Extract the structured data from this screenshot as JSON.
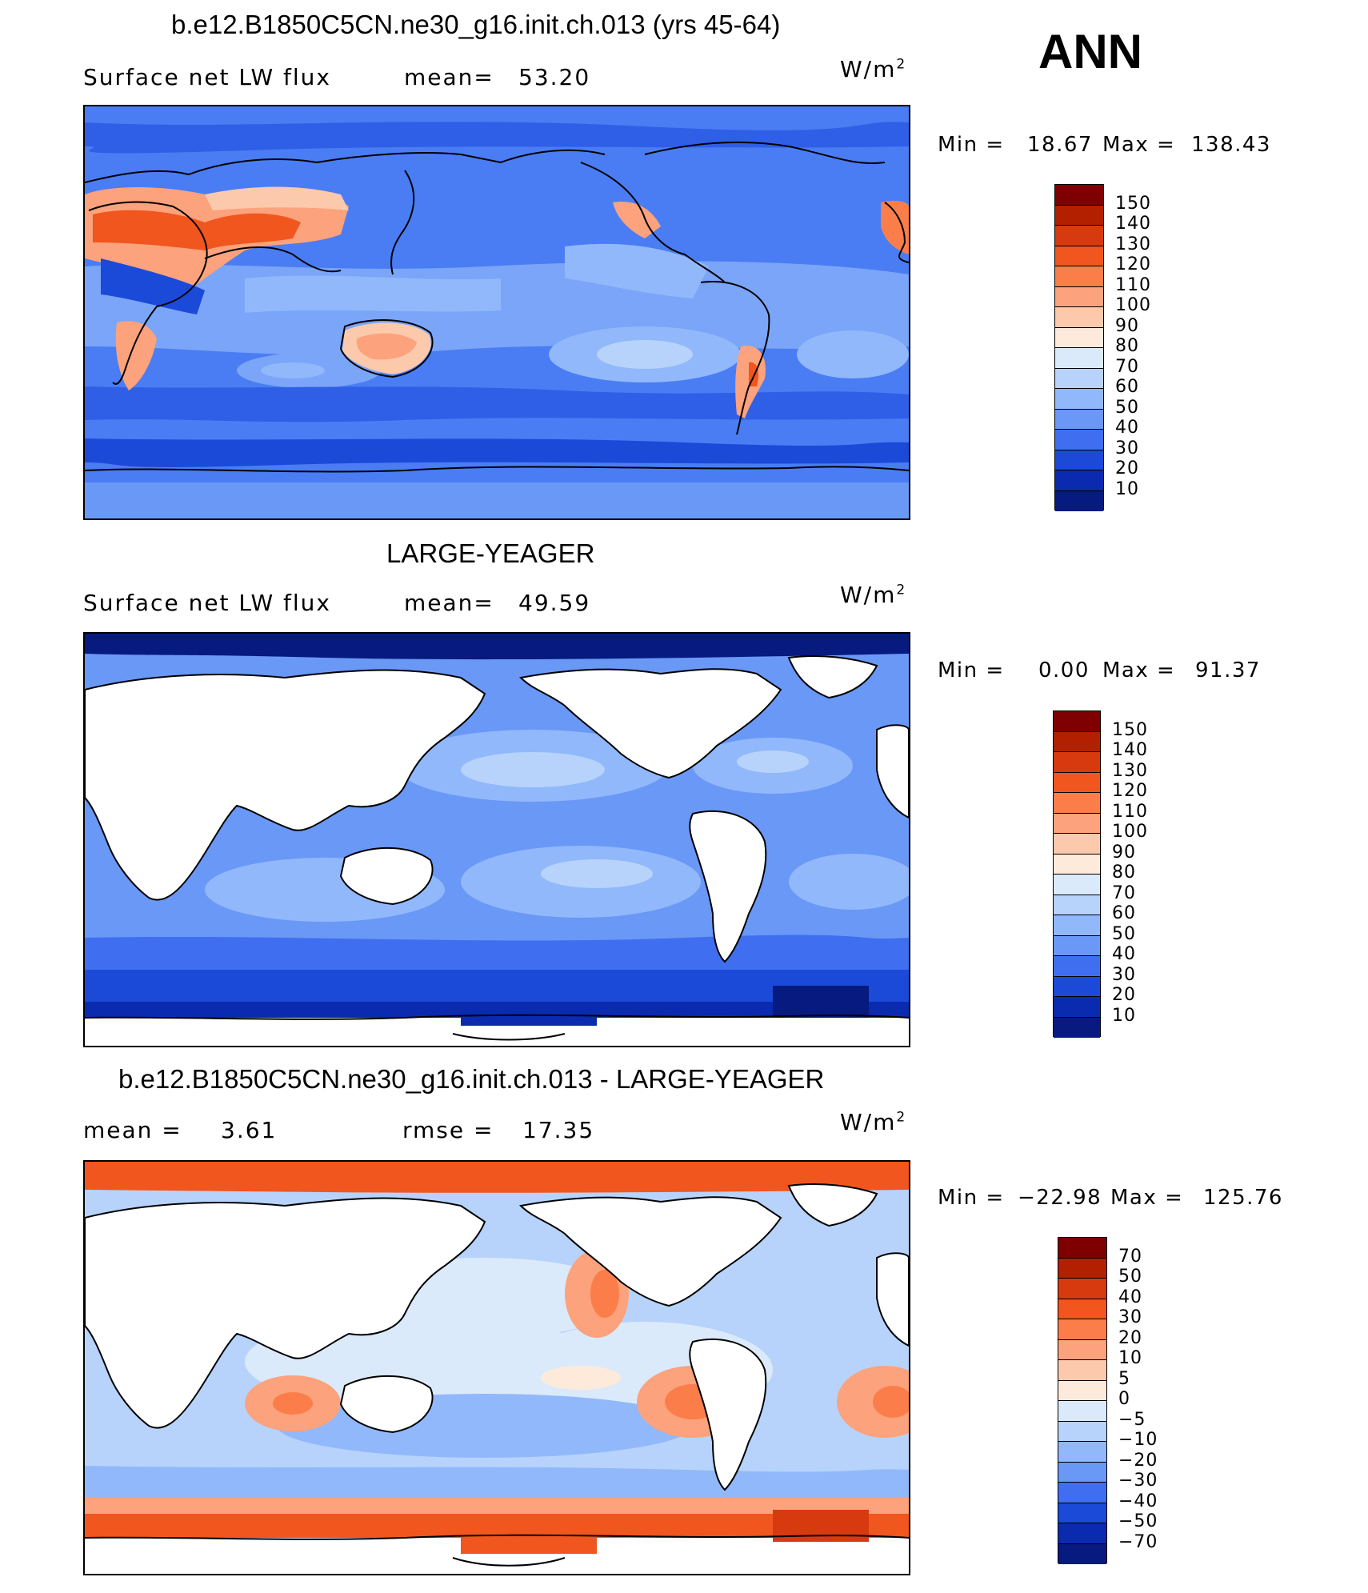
{
  "season": "ANN",
  "panels": [
    {
      "title": "b.e12.B1850C5CN.ne30_g16.init.ch.013 (yrs 45-64)",
      "left_text": "Surface net LW flux",
      "mid_label": "mean=",
      "mid_value": "53.20",
      "units": "W/m",
      "units_sup": "2",
      "min_label": "Min  =",
      "min_value": "18.67",
      "max_label": "Max  =",
      "max_value": "138.43",
      "colorbar": [
        "150",
        "140",
        "130",
        "120",
        "110",
        "100",
        "90",
        "80",
        "70",
        "60",
        "50",
        "40",
        "30",
        "20",
        "10"
      ],
      "colors": [
        "#7f0000",
        "#b22000",
        "#d83a10",
        "#f0561e",
        "#fb7e4a",
        "#fca27c",
        "#fdc9ac",
        "#fdeadb",
        "#dbeafb",
        "#b7d3fb",
        "#91b8fa",
        "#6a98f6",
        "#3f6ff0",
        "#1b4ad9",
        "#0a2bb0",
        "#061a7f"
      ]
    },
    {
      "title": "LARGE-YEAGER",
      "left_text": "Surface net LW flux",
      "mid_label": "mean=",
      "mid_value": "49.59",
      "units": "W/m",
      "units_sup": "2",
      "min_label": "Min  =",
      "min_value": "0.00",
      "max_label": "Max  =",
      "max_value": "91.37",
      "colorbar": [
        "150",
        "140",
        "130",
        "120",
        "110",
        "100",
        "90",
        "80",
        "70",
        "60",
        "50",
        "40",
        "30",
        "20",
        "10"
      ],
      "colors": [
        "#7f0000",
        "#b22000",
        "#d83a10",
        "#f0561e",
        "#fb7e4a",
        "#fca27c",
        "#fdc9ac",
        "#fdeadb",
        "#dbeafb",
        "#b7d3fb",
        "#91b8fa",
        "#6a98f6",
        "#3f6ff0",
        "#1b4ad9",
        "#0a2bb0",
        "#061a7f"
      ]
    },
    {
      "title": "b.e12.B1850C5CN.ne30_g16.init.ch.013 - LARGE-YEAGER",
      "left_label": "mean =",
      "left_value": "3.61",
      "mid_label": "rmse =",
      "mid_value": "17.35",
      "units": "W/m",
      "units_sup": "2",
      "min_label": "Min  =",
      "min_value": "−22.98",
      "max_label": "Max  =",
      "max_value": "125.76",
      "colorbar": [
        "70",
        "50",
        "40",
        "30",
        "20",
        "10",
        "5",
        "0",
        "−5",
        "−10",
        "−20",
        "−30",
        "−40",
        "−50",
        "−70"
      ],
      "colors": [
        "#7f0000",
        "#b22000",
        "#d83a10",
        "#f0561e",
        "#fb7e4a",
        "#fca27c",
        "#fdc9ac",
        "#fdeadb",
        "#dbeafb",
        "#b7d3fb",
        "#91b8fa",
        "#6a98f6",
        "#3f6ff0",
        "#1b4ad9",
        "#0a2bb0",
        "#061a7f"
      ]
    }
  ]
}
